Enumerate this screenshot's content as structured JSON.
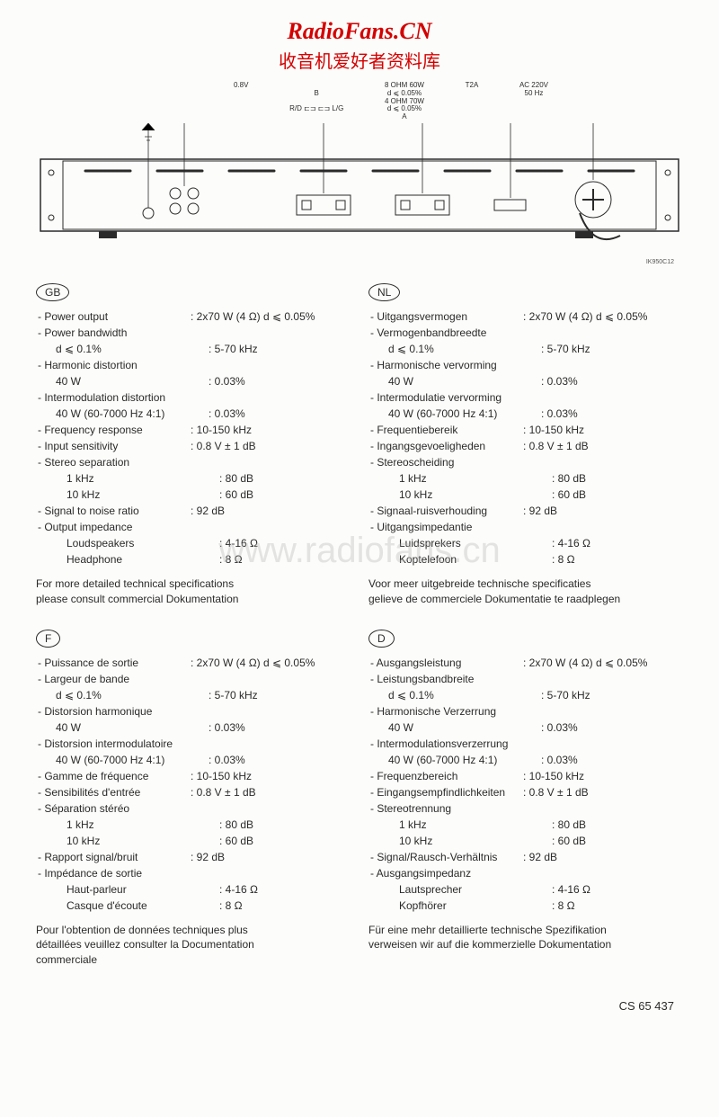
{
  "header": {
    "title": "RadioFans.CN",
    "subtitle": "收音机爱好者资料库"
  },
  "watermark": "www.radiofans.cn",
  "diagram": {
    "callouts": {
      "voltage": "0.8V",
      "speaker_b": "B",
      "rd": "R/D",
      "lg": "L/G",
      "spec_block": "8 OHM 60W\nd ⩽ 0.05%\n4 OHM 70W\nd ⩽ 0.05%\nA",
      "fuse": "T2A",
      "ac": "AC 220V\n50 Hz"
    },
    "id": "IK950C12"
  },
  "footer_code": "CS 65 437",
  "blocks": [
    {
      "lang": "GB",
      "rows": [
        [
          "- Power output",
          ": 2x70 W (4 Ω) d ⩽ 0.05%"
        ],
        [
          "- Power bandwidth",
          ""
        ],
        [
          "  d ⩽ 0.1%",
          ": 5-70 kHz"
        ],
        [
          "- Harmonic distortion",
          ""
        ],
        [
          "  40 W",
          ": 0.03%"
        ],
        [
          "- Intermodulation distortion",
          ""
        ],
        [
          "  40 W (60-7000 Hz 4:1)",
          ": 0.03%"
        ],
        [
          "- Frequency response",
          ": 10-150 kHz"
        ],
        [
          "- Input sensitivity",
          ": 0.8 V ± 1 dB"
        ],
        [
          "- Stereo separation",
          ""
        ],
        [
          "     1 kHz",
          ": 80 dB"
        ],
        [
          "     10 kHz",
          ": 60 dB"
        ],
        [
          "- Signal to noise ratio",
          ": 92 dB"
        ],
        [
          "- Output impedance",
          ""
        ],
        [
          "     Loudspeakers",
          ": 4-16 Ω"
        ],
        [
          "     Headphone",
          ": 8 Ω"
        ]
      ],
      "note": "For more detailed technical specifications\nplease consult commercial Dokumentation"
    },
    {
      "lang": "NL",
      "rows": [
        [
          "- Uitgangsvermogen",
          ": 2x70 W (4 Ω) d ⩽ 0.05%"
        ],
        [
          "- Vermogenbandbreedte",
          ""
        ],
        [
          "  d ⩽ 0.1%",
          ": 5-70 kHz"
        ],
        [
          "- Harmonische vervorming",
          ""
        ],
        [
          "  40 W",
          ": 0.03%"
        ],
        [
          "- Intermodulatie vervorming",
          ""
        ],
        [
          "  40 W (60-7000 Hz 4:1)",
          ": 0.03%"
        ],
        [
          "- Frequentiebereik",
          ": 10-150 kHz"
        ],
        [
          "- Ingangsgevoeligheden",
          ": 0.8 V ± 1 dB"
        ],
        [
          "- Stereoscheiding",
          ""
        ],
        [
          "     1 kHz",
          ": 80 dB"
        ],
        [
          "     10 kHz",
          ": 60 dB"
        ],
        [
          "- Signaal-ruisverhouding",
          ": 92 dB"
        ],
        [
          "- Uitgangsimpedantie",
          ""
        ],
        [
          "     Luidsprekers",
          ": 4-16 Ω"
        ],
        [
          "     Koptelefoon",
          ": 8 Ω"
        ]
      ],
      "note": "Voor meer uitgebreide technische specificaties\ngelieve de commerciele Dokumentatie te raadplegen"
    },
    {
      "lang": "F",
      "rows": [
        [
          "- Puissance de sortie",
          ": 2x70 W (4 Ω) d ⩽ 0.05%"
        ],
        [
          "- Largeur de bande",
          ""
        ],
        [
          "  d ⩽ 0.1%",
          ": 5-70 kHz"
        ],
        [
          "- Distorsion harmonique",
          ""
        ],
        [
          "  40 W",
          ": 0.03%"
        ],
        [
          "- Distorsion intermodulatoire",
          ""
        ],
        [
          "  40 W (60-7000 Hz 4:1)",
          ": 0.03%"
        ],
        [
          "- Gamme de fréquence",
          ": 10-150 kHz"
        ],
        [
          "- Sensibilités d'entrée",
          ": 0.8 V ± 1 dB"
        ],
        [
          "- Séparation stéréo",
          ""
        ],
        [
          "     1 kHz",
          ": 80 dB"
        ],
        [
          "     10 kHz",
          ": 60 dB"
        ],
        [
          "- Rapport signal/bruit",
          ": 92 dB"
        ],
        [
          "- Impédance de sortie",
          ""
        ],
        [
          "     Haut-parleur",
          ": 4-16 Ω"
        ],
        [
          "     Casque d'écoute",
          ": 8 Ω"
        ]
      ],
      "note": "Pour l'obtention de données techniques plus\ndétaillées veuillez consulter la Documentation\ncommerciale"
    },
    {
      "lang": "D",
      "rows": [
        [
          "- Ausgangsleistung",
          ": 2x70 W (4 Ω) d ⩽ 0.05%"
        ],
        [
          "- Leistungsbandbreite",
          ""
        ],
        [
          "  d ⩽ 0.1%",
          ": 5-70 kHz"
        ],
        [
          "- Harmonische Verzerrung",
          ""
        ],
        [
          "  40 W",
          ": 0.03%"
        ],
        [
          "- Intermodulationsverzerrung",
          ""
        ],
        [
          "  40 W (60-7000 Hz 4:1)",
          ": 0.03%"
        ],
        [
          "- Frequenzbereich",
          ": 10-150 kHz"
        ],
        [
          "- Eingangsempfindlichkeiten",
          ": 0.8 V ± 1 dB"
        ],
        [
          "- Stereotrennung",
          ""
        ],
        [
          "     1 kHz",
          ": 80 dB"
        ],
        [
          "     10 kHz",
          ": 60 dB"
        ],
        [
          "- Signal/Rausch-Verhältnis",
          ": 92 dB"
        ],
        [
          "- Ausgangsimpedanz",
          ""
        ],
        [
          "     Lautsprecher",
          ": 4-16 Ω"
        ],
        [
          "     Kopfhörer",
          ": 8 Ω"
        ]
      ],
      "note": "Für eine mehr detaillierte technische Spezifikation\nverweisen wir auf die kommerzielle Dokumentation"
    }
  ]
}
